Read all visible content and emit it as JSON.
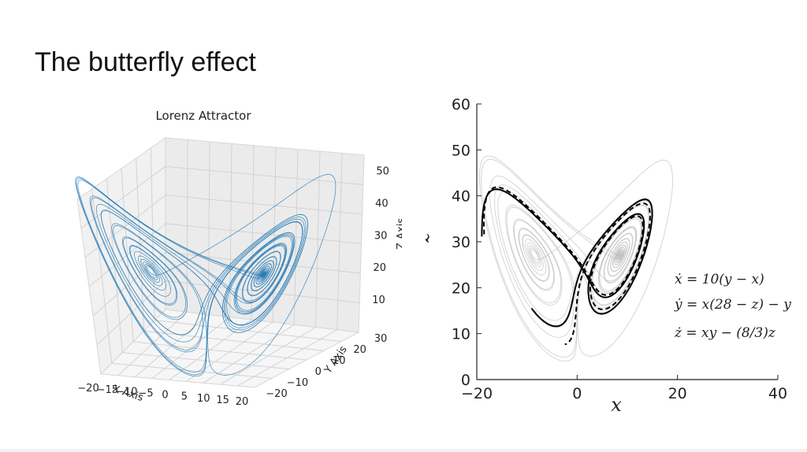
{
  "slide": {
    "title": "The butterfly effect"
  },
  "chart_data": [
    {
      "type": "line3d",
      "title": "Lorenz Attractor",
      "xlabel": "X Axis",
      "ylabel": "Y Axis",
      "zlabel": "Z Axis",
      "x_ticks": [
        "−20",
        "−15",
        "−10",
        "−5",
        "0",
        "5",
        "10",
        "15",
        "20"
      ],
      "y_ticks": [
        "−20",
        "−10",
        "0",
        "10",
        "20",
        "30"
      ],
      "z_ticks": [
        "10",
        "20",
        "30",
        "40",
        "50"
      ],
      "xlim": [
        -20,
        20
      ],
      "ylim": [
        -25,
        30
      ],
      "zlim": [
        0,
        50
      ],
      "series_color": "#1f77b4",
      "lorenz": {
        "sigma": 10,
        "rho": 28,
        "beta": 2.6667
      }
    },
    {
      "type": "line",
      "xlabel": "x",
      "ylabel": "z",
      "x_ticks": [
        "−20",
        "0",
        "20",
        "40"
      ],
      "y_ticks": [
        "0",
        "10",
        "20",
        "30",
        "40",
        "50",
        "60"
      ],
      "xlim": [
        -20,
        40
      ],
      "ylim": [
        0,
        60
      ],
      "background_color": "#bbbbbb",
      "trajectory_color": "#000000",
      "equations": [
        "ẋ = 10(y − x)",
        "ẏ = x(28 − z) − y",
        "ż = xy − (8/3)z"
      ]
    }
  ]
}
